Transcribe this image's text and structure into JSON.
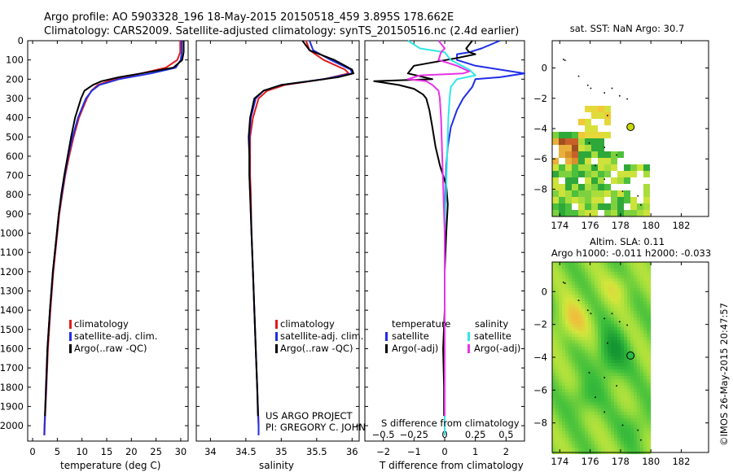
{
  "header": {
    "line1": "Argo profile: AO 5903328_196 18-May-2015 20150518_459 3.895S 178.662E",
    "line2": "Climatology: CARS2009. Satellite-adjusted climatology: synTS_20150516.nc (2.4d earlier)"
  },
  "colors": {
    "clim": "#e31a1c",
    "sat": "#1f2ee6",
    "argo": "#000000",
    "sal_sat": "#33e6e6",
    "sal_argo": "#e633e6",
    "float": "#c8d800"
  },
  "credits": {
    "project": "US ARGO PROJECT",
    "pi": "PI: GREGORY C. JOHNSON",
    "imos": "©IMOS 26-May-2015 20:47:57"
  },
  "chart_data": [
    {
      "id": "temp",
      "type": "line",
      "xlabel": "temperature (deg C)",
      "ylabel": "",
      "xlim": [
        -1,
        31.5
      ],
      "ylim": [
        2080,
        0
      ],
      "xticks": [
        0,
        5,
        10,
        15,
        20,
        25,
        30
      ],
      "yticks": [
        0,
        100,
        200,
        300,
        400,
        500,
        600,
        700,
        800,
        900,
        1000,
        1100,
        1200,
        1300,
        1400,
        1500,
        1600,
        1700,
        1800,
        1900,
        2000
      ],
      "legend": [
        "climatology",
        "satellite-adj. clim.",
        "Argo(..raw -QC)"
      ],
      "series": [
        {
          "name": "climatology",
          "depth": [
            0,
            60,
            100,
            140,
            170,
            200,
            230,
            260,
            300,
            400,
            500,
            600,
            700,
            800,
            900,
            1000,
            1200,
            1400,
            1600,
            1800,
            2000,
            2050
          ],
          "values": [
            29.9,
            29.9,
            29.3,
            27.0,
            22.0,
            16.5,
            13.2,
            11.9,
            11.0,
            9.4,
            8.3,
            7.4,
            6.6,
            6.0,
            5.4,
            5.0,
            4.2,
            3.6,
            3.1,
            2.8,
            2.45,
            2.4
          ]
        },
        {
          "name": "satellite-adj. clim.",
          "depth": [
            0,
            60,
            100,
            140,
            170,
            200,
            230,
            260,
            300,
            400,
            500,
            600,
            700,
            800,
            900,
            1000,
            1200,
            1400,
            1600,
            1800,
            2000,
            2050
          ],
          "values": [
            30.2,
            30.2,
            30.0,
            29.0,
            24.0,
            17.5,
            13.5,
            12.0,
            10.8,
            9.2,
            8.1,
            7.2,
            6.5,
            5.9,
            5.3,
            4.9,
            4.1,
            3.5,
            3.0,
            2.75,
            2.4,
            2.35
          ]
        },
        {
          "name": "Argo(..raw -QC)",
          "depth": [
            0,
            60,
            100,
            140,
            170,
            190,
            210,
            230,
            260,
            300,
            400,
            500,
            600,
            700,
            800,
            900,
            1000,
            1200,
            1400,
            1600,
            1800,
            1950
          ],
          "values": [
            30.6,
            30.6,
            30.3,
            28.5,
            22.0,
            17.5,
            14.0,
            12.2,
            10.5,
            9.8,
            8.6,
            7.8,
            7.1,
            6.4,
            5.8,
            5.3,
            4.9,
            4.1,
            3.5,
            3.0,
            2.7,
            2.5
          ]
        }
      ]
    },
    {
      "id": "sal",
      "type": "line",
      "xlabel": "salinity",
      "ylabel": "",
      "xlim": [
        33.8,
        36.1
      ],
      "ylim": [
        2080,
        0
      ],
      "xticks": [
        34,
        34.5,
        35,
        35.5,
        36
      ],
      "xticklabels": [
        "34",
        "34.5",
        "35",
        "35.5",
        "36"
      ],
      "legend": [
        "climatology",
        "satellite-adj. clim.",
        "Argo(..raw -QC)"
      ],
      "series": [
        {
          "name": "climatology",
          "depth": [
            0,
            50,
            100,
            150,
            170,
            200,
            230,
            260,
            300,
            400,
            500,
            600,
            700,
            800,
            1000,
            1200,
            1400,
            1600,
            1800,
            2000,
            2050
          ],
          "values": [
            35.35,
            35.4,
            35.6,
            35.9,
            35.95,
            35.6,
            35.05,
            34.8,
            34.68,
            34.6,
            34.56,
            34.56,
            34.56,
            34.57,
            34.58,
            34.6,
            34.62,
            34.64,
            34.66,
            34.68,
            34.68
          ]
        },
        {
          "name": "satellite-adj. clim.",
          "depth": [
            0,
            50,
            100,
            150,
            170,
            200,
            230,
            260,
            300,
            400,
            500,
            600,
            700,
            800,
            1000,
            1200,
            1400,
            1600,
            1800,
            2000,
            2050
          ],
          "values": [
            35.4,
            35.45,
            35.7,
            35.98,
            36.0,
            35.6,
            35.0,
            34.75,
            34.64,
            34.57,
            34.55,
            34.55,
            34.55,
            34.56,
            34.58,
            34.6,
            34.62,
            34.64,
            34.66,
            34.68,
            34.68
          ]
        },
        {
          "name": "Argo(..raw -QC)",
          "depth": [
            0,
            50,
            100,
            130,
            150,
            170,
            190,
            210,
            230,
            260,
            300,
            400,
            500,
            600,
            700,
            800,
            1000,
            1200,
            1400,
            1600,
            1800,
            1950
          ],
          "values": [
            35.3,
            35.4,
            35.75,
            35.9,
            36.0,
            36.02,
            35.8,
            35.4,
            35.0,
            34.75,
            34.62,
            34.56,
            34.54,
            34.55,
            34.55,
            34.56,
            34.58,
            34.6,
            34.62,
            34.64,
            34.66,
            34.67
          ]
        }
      ]
    },
    {
      "id": "diff",
      "type": "line",
      "xlabel": "T difference from climatology",
      "xlabel2": "S difference from climatology",
      "xlim": [
        -2.6,
        2.6
      ],
      "ylim": [
        2080,
        0
      ],
      "xticks": [
        -2,
        -1,
        0,
        1,
        2
      ],
      "xticklabels": [
        "−2",
        "−1",
        "0",
        "1",
        "2"
      ],
      "xticks2": [
        -0.5,
        -0.25,
        0,
        0.25,
        0.5
      ],
      "xticklabels2": [
        "−0.5",
        "−0.25",
        "0",
        "0.25",
        "0.5"
      ],
      "legend_titles": [
        "temperature",
        "salinity"
      ],
      "legend": [
        "satellite",
        "Argo(-adj)",
        "satellite",
        "Argo(-adj)"
      ],
      "series": [
        {
          "name": "T satellite",
          "depth": [
            0,
            40,
            60,
            70,
            100,
            130,
            170,
            190,
            200,
            240,
            300,
            360,
            450,
            550,
            650,
            800,
            1000,
            1300,
            1600,
            2000,
            2050
          ],
          "values": [
            1.8,
            1.2,
            0.8,
            0.4,
            0.4,
            1.0,
            2.6,
            1.8,
            1.0,
            0.9,
            0.6,
            0.4,
            0.2,
            0.1,
            0.05,
            0.02,
            0.0,
            0.0,
            0.0,
            0.0,
            0.0
          ]
        },
        {
          "name": "T Argo(-adj)",
          "depth": [
            0,
            40,
            60,
            70,
            90,
            130,
            170,
            200,
            210,
            230,
            250,
            280,
            300,
            360,
            450,
            550,
            650,
            750,
            850,
            1000,
            1200,
            1400,
            1600,
            1800,
            1950
          ],
          "values": [
            0.9,
            0.7,
            0.8,
            1.0,
            0.4,
            -1.0,
            -1.2,
            -0.4,
            -2.3,
            -1.5,
            -1.0,
            -0.7,
            -0.6,
            -0.5,
            -0.4,
            -0.3,
            -0.15,
            0.05,
            0.1,
            0.05,
            0.0,
            0.0,
            -0.05,
            -0.02,
            -0.02
          ]
        },
        {
          "name": "S satellite",
          "depth": [
            0,
            40,
            60,
            100,
            150,
            180,
            200,
            240,
            300,
            400,
            600,
            800,
            1000,
            1300,
            1600,
            2000,
            2050
          ],
          "values": [
            -0.3,
            -0.2,
            0.0,
            0.05,
            0.2,
            0.25,
            0.1,
            0.05,
            0.04,
            0.03,
            0.02,
            0.01,
            0.0,
            0.0,
            0.0,
            0.0,
            0.0
          ]
        },
        {
          "name": "S Argo(-adj)",
          "depth": [
            0,
            40,
            60,
            100,
            130,
            160,
            170,
            180,
            200,
            210,
            230,
            260,
            300,
            400,
            600,
            800,
            1000,
            1300,
            1600,
            1800,
            1950
          ],
          "values": [
            -0.05,
            0.0,
            -0.03,
            -0.05,
            0.1,
            0.2,
            0.15,
            -0.2,
            -0.3,
            -0.15,
            -0.1,
            -0.05,
            -0.04,
            -0.03,
            -0.02,
            -0.01,
            0.0,
            0.0,
            0.0,
            0.0,
            0.0
          ]
        }
      ]
    },
    {
      "id": "sst_map",
      "type": "heatmap",
      "title": "sat. SST: NaN Argo: 30.7",
      "xlim": [
        173.5,
        183.8
      ],
      "ylim": [
        -9.8,
        1.8
      ],
      "xticks": [
        174,
        176,
        178,
        180,
        182
      ],
      "yticks": [
        0,
        -2,
        -4,
        -6,
        -8
      ],
      "float_position": {
        "lon": 178.662,
        "lat": -3.895
      }
    },
    {
      "id": "sla_map",
      "type": "heatmap",
      "title": "Altim. SLA: 0.11",
      "subtitle": "Argo h1000: -0.011 h2000: -0.033",
      "xlim": [
        173.5,
        183.8
      ],
      "ylim": [
        -9.8,
        1.8
      ],
      "xticks": [
        174,
        176,
        178,
        180,
        182
      ],
      "yticks": [
        0,
        -2,
        -4,
        -6,
        -8
      ],
      "float_position": {
        "lon": 178.662,
        "lat": -3.895
      }
    }
  ]
}
